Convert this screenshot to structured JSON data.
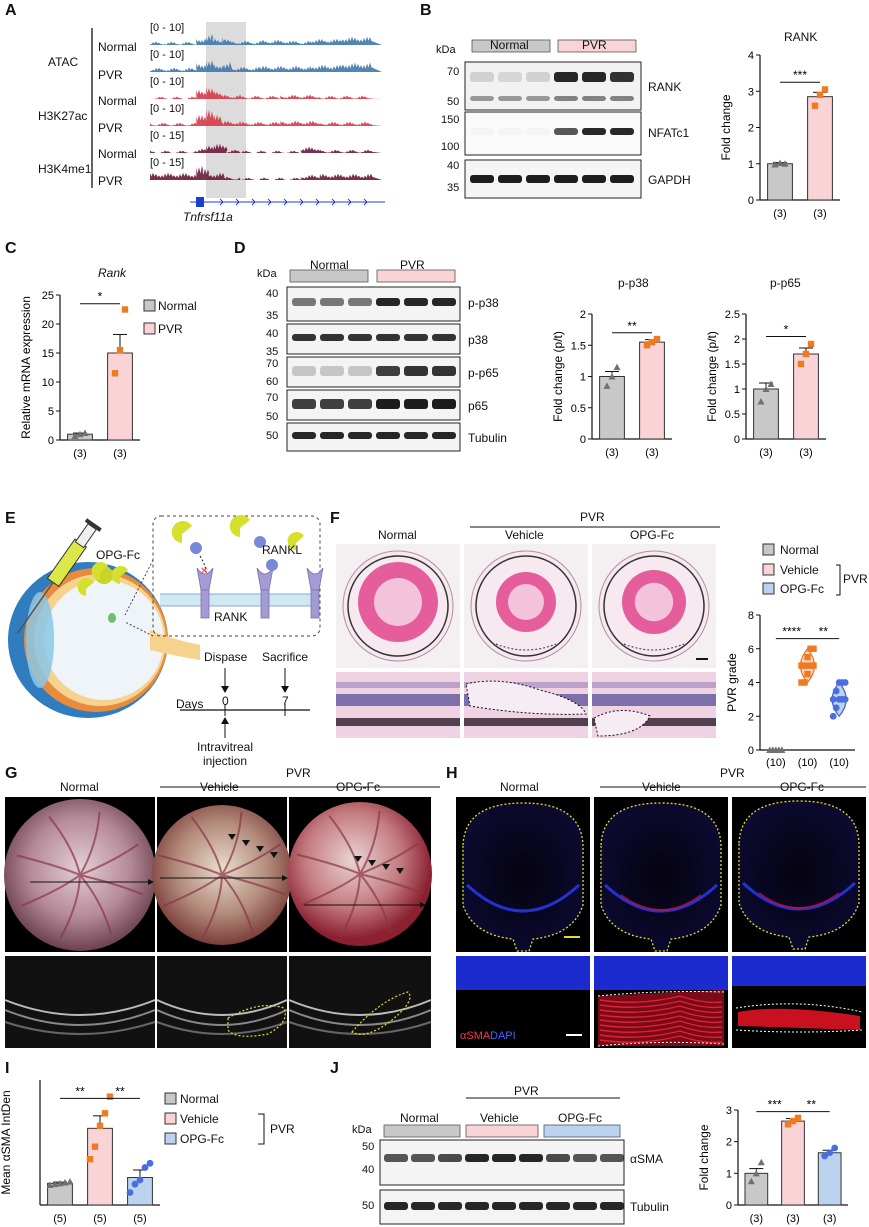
{
  "panels": {
    "A": {
      "letter": "A",
      "tracks": [
        {
          "range": "[0 - 10]",
          "mark": "ATAC",
          "cond": "Normal",
          "color": "#3f78a9"
        },
        {
          "range": "[0 - 10]",
          "mark": "",
          "cond": "PVR",
          "color": "#3f78a9"
        },
        {
          "range": "[0 - 10]",
          "mark": "H3K27ac",
          "cond": "Normal",
          "color": "#d63a48"
        },
        {
          "range": "[0 - 10]",
          "mark": "",
          "cond": "PVR",
          "color": "#d63a48"
        },
        {
          "range": "[0 - 15]",
          "mark": "H3K4me1",
          "cond": "Normal",
          "color": "#6e1a3c"
        },
        {
          "range": "[0 - 15]",
          "mark": "",
          "cond": "PVR",
          "color": "#6e1a3c"
        }
      ],
      "gene": "Tnfrsf11a"
    },
    "B": {
      "letter": "B",
      "kda": "kDa",
      "groups": [
        "Normal",
        "PVR"
      ],
      "bands": [
        "RANK",
        "NFATc1",
        "GAPDH"
      ],
      "markers": [
        "70",
        "50",
        "150",
        "100",
        "40",
        "35"
      ],
      "chart_title": "RANK",
      "ylabel": "Fold change",
      "sig": "***"
    },
    "C": {
      "letter": "C",
      "title": "Rank",
      "ylabel": "Relative mRNA expression",
      "sig": "*",
      "legend": [
        "Normal",
        "PVR"
      ]
    },
    "D": {
      "letter": "D",
      "kda": "kDa",
      "groups": [
        "Normal",
        "PVR"
      ],
      "bands": [
        "p-p38",
        "p38",
        "p-p65",
        "p65",
        "Tubulin"
      ],
      "markers": [
        "40",
        "35",
        "40",
        "35",
        "70",
        "60",
        "70",
        "50",
        "50"
      ],
      "chart1_title": "p-p38",
      "chart2_title": "p-p65",
      "ylabel": "Fold change (p/t)",
      "sig1": "**",
      "sig2": "*"
    },
    "E": {
      "letter": "E",
      "drug": "OPG-Fc",
      "ligand": "RANKL",
      "receptor": "RANK",
      "days": "Days",
      "day0": "0",
      "day7": "7",
      "dispase": "Dispase",
      "sacrifice": "Sacrifice",
      "injection": "Intravitreal injection"
    },
    "F": {
      "letter": "F",
      "cols": [
        "Normal",
        "Vehicle",
        "OPG-Fc"
      ],
      "pvr": "PVR",
      "legend": [
        "Normal",
        "Vehicle",
        "OPG-Fc"
      ],
      "legend_bracket": "PVR",
      "ylabel": "PVR grade",
      "sig1": "****",
      "sig2": "**"
    },
    "G": {
      "letter": "G",
      "cols": [
        "Normal",
        "Vehicle",
        "OPG-Fc"
      ],
      "pvr": "PVR"
    },
    "H": {
      "letter": "H",
      "cols": [
        "Normal",
        "Vehicle",
        "OPG-Fc"
      ],
      "pvr": "PVR",
      "stain1": "αSMA",
      "stain2": "DAPI"
    },
    "I": {
      "letter": "I",
      "ylabel": "Mean αSMA IntDen",
      "sig1": "**",
      "sig2": "**",
      "legend": [
        "Normal",
        "Vehicle",
        "OPG-Fc"
      ],
      "legend_bracket": "PVR"
    },
    "J": {
      "letter": "J",
      "kda": "kDa",
      "pvr": "PVR",
      "groups": [
        "Normal",
        "Vehicle",
        "OPG-Fc"
      ],
      "bands": [
        "αSMA",
        "Tubulin"
      ],
      "markers": [
        "50",
        "40",
        "50"
      ],
      "ylabel": "Fold change",
      "sig1": "***",
      "sig2": "**"
    }
  },
  "colors": {
    "normal": "#c8c8c8",
    "pvr": "#f9d3d6",
    "opg": "#bcd3f0",
    "orange": "#f07a1f",
    "blue_pt": "#4a6ee0",
    "gray_pt": "#707070"
  },
  "chart_data": [
    {
      "id": "B",
      "type": "bar",
      "title": "RANK",
      "ylabel": "Fold change",
      "categories": [
        "(3)",
        "(3)"
      ],
      "values": [
        1.0,
        2.85
      ],
      "err": [
        0.03,
        0.12
      ],
      "ylim": [
        0,
        4
      ],
      "yticks": [
        0,
        1,
        2,
        3,
        4
      ],
      "points": [
        [
          0.98,
          1.02,
          1.0
        ],
        [
          2.6,
          2.9,
          3.05
        ]
      ]
    },
    {
      "id": "C",
      "type": "bar",
      "title": "Rank",
      "ylabel": "Relative mRNA expression",
      "categories": [
        "(3)",
        "(3)"
      ],
      "values": [
        1.0,
        15.0
      ],
      "err": [
        0.2,
        3.2
      ],
      "ylim": [
        0,
        25
      ],
      "yticks": [
        0,
        5,
        10,
        15,
        20,
        25
      ],
      "points": [
        [
          0.7,
          1.0,
          1.2
        ],
        [
          11.5,
          15.5,
          22.5
        ]
      ]
    },
    {
      "id": "D1",
      "type": "bar",
      "title": "p-p38",
      "ylabel": "Fold change (p/t)",
      "categories": [
        "(3)",
        "(3)"
      ],
      "values": [
        1.0,
        1.55
      ],
      "err": [
        0.08,
        0.04
      ],
      "ylim": [
        0,
        2.0
      ],
      "yticks": [
        0.0,
        0.5,
        1.0,
        1.5,
        2.0
      ],
      "points": [
        [
          0.85,
          1.0,
          1.15
        ],
        [
          1.5,
          1.55,
          1.6
        ]
      ]
    },
    {
      "id": "D2",
      "type": "bar",
      "title": "p-p65",
      "ylabel": "Fold change (p/t)",
      "categories": [
        "(3)",
        "(3)"
      ],
      "values": [
        1.0,
        1.7
      ],
      "err": [
        0.12,
        0.12
      ],
      "ylim": [
        0,
        2.5
      ],
      "yticks": [
        0.0,
        0.5,
        1.0,
        1.5,
        2.0,
        2.5
      ],
      "points": [
        [
          0.75,
          1.0,
          1.1
        ],
        [
          1.5,
          1.7,
          1.9
        ]
      ]
    },
    {
      "id": "F",
      "type": "violin",
      "ylabel": "PVR grade",
      "categories": [
        "(10)",
        "(10)",
        "(10)"
      ],
      "series": [
        {
          "name": "Normal",
          "values": [
            0,
            0,
            0,
            0,
            0,
            0,
            0,
            0,
            0,
            0
          ]
        },
        {
          "name": "Vehicle",
          "values": [
            4,
            4,
            4.5,
            5,
            5,
            5,
            5,
            5.5,
            6,
            6
          ]
        },
        {
          "name": "OPG-Fc",
          "values": [
            2,
            2.5,
            3,
            3,
            3,
            3,
            3.5,
            4,
            4,
            4
          ]
        }
      ],
      "ylim": [
        0,
        8
      ],
      "yticks": [
        0,
        2,
        4,
        6,
        8
      ]
    },
    {
      "id": "I",
      "type": "bar",
      "ylabel": "Mean αSMA IntDen",
      "categories": [
        "(5)",
        "(5)",
        "(5)"
      ],
      "values": [
        2.6,
        9.2,
        3.3
      ],
      "err": [
        0.15,
        1.5,
        0.9
      ],
      "ylim": [
        0,
        15
      ],
      "points": [
        [
          2.4,
          2.5,
          2.6,
          2.7,
          2.8
        ],
        [
          5.5,
          7.0,
          9.5,
          11.0,
          13.0
        ],
        [
          1.5,
          2.5,
          3.0,
          4.5,
          5.0
        ]
      ]
    },
    {
      "id": "J",
      "type": "bar",
      "ylabel": "Fold change",
      "categories": [
        "(3)",
        "(3)",
        "(3)"
      ],
      "values": [
        1.0,
        2.65,
        1.65
      ],
      "err": [
        0.15,
        0.08,
        0.08
      ],
      "ylim": [
        0,
        3
      ],
      "yticks": [
        0,
        1,
        2,
        3
      ],
      "points": [
        [
          0.75,
          1.0,
          1.35
        ],
        [
          2.55,
          2.65,
          2.75
        ],
        [
          1.55,
          1.65,
          1.8
        ]
      ]
    }
  ]
}
